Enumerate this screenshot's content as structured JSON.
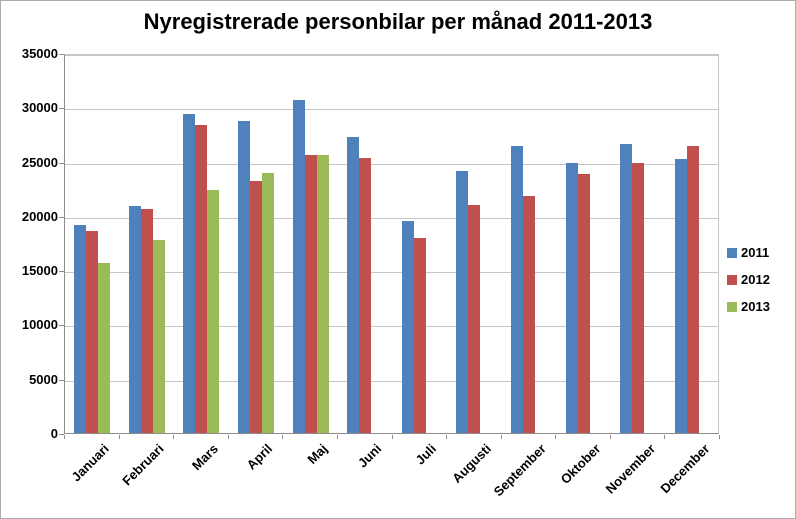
{
  "window": {
    "background": "#FFFFFF",
    "border_color": "#ABABAB"
  },
  "chart_data": {
    "type": "bar",
    "title": "Nyregistrerade personbilar per månad 2011-2013",
    "xlabel": "",
    "ylabel": "",
    "categories": [
      "Januari",
      "Februari",
      "Mars",
      "April",
      "Maj",
      "Juni",
      "Juli",
      "Augusti",
      "September",
      "Oktober",
      "November",
      "December"
    ],
    "series": [
      {
        "name": "2011",
        "color": "#4F81BD",
        "values": [
          19300,
          21000,
          29500,
          28900,
          30800,
          27400,
          19600,
          24300,
          26600,
          25000,
          26800,
          25400
        ]
      },
      {
        "name": "2012",
        "color": "#C0504D",
        "values": [
          18700,
          20700,
          28500,
          23300,
          25700,
          25500,
          18100,
          21100,
          21900,
          24000,
          25000,
          26600
        ]
      },
      {
        "name": "2013",
        "color": "#9BBB59",
        "values": [
          15700,
          17900,
          22500,
          24100,
          25700,
          null,
          null,
          null,
          null,
          null,
          null,
          null
        ]
      }
    ],
    "ylim": [
      0,
      35000
    ],
    "yticks": [
      0,
      5000,
      10000,
      15000,
      20000,
      25000,
      30000,
      35000
    ],
    "grid": "horizontal",
    "gridline_color": "#C6C6C6",
    "axis_color": "#8C8C8C",
    "legend_position": "right",
    "x_label_rotation_deg": 45
  }
}
